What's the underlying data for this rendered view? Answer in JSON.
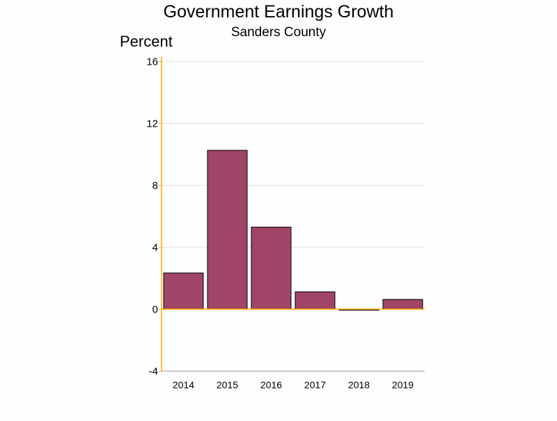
{
  "chart_data": {
    "type": "bar",
    "title": "Government Earnings Growth",
    "subtitle": "Sanders County",
    "ylabel": "Percent",
    "xlabel": "",
    "categories": [
      "2014",
      "2015",
      "2016",
      "2017",
      "2018",
      "2019"
    ],
    "values": [
      2.34,
      10.26,
      5.3,
      1.12,
      -0.05,
      0.63
    ],
    "ylim": [
      -4,
      16
    ],
    "yticks": [
      "-4",
      "0",
      "4",
      "8",
      "12",
      "16"
    ],
    "grid": true,
    "legend": "none",
    "colors": {
      "bar": "#a04468",
      "axis": "#ffaa00",
      "grid": "#e0e0e0"
    }
  }
}
